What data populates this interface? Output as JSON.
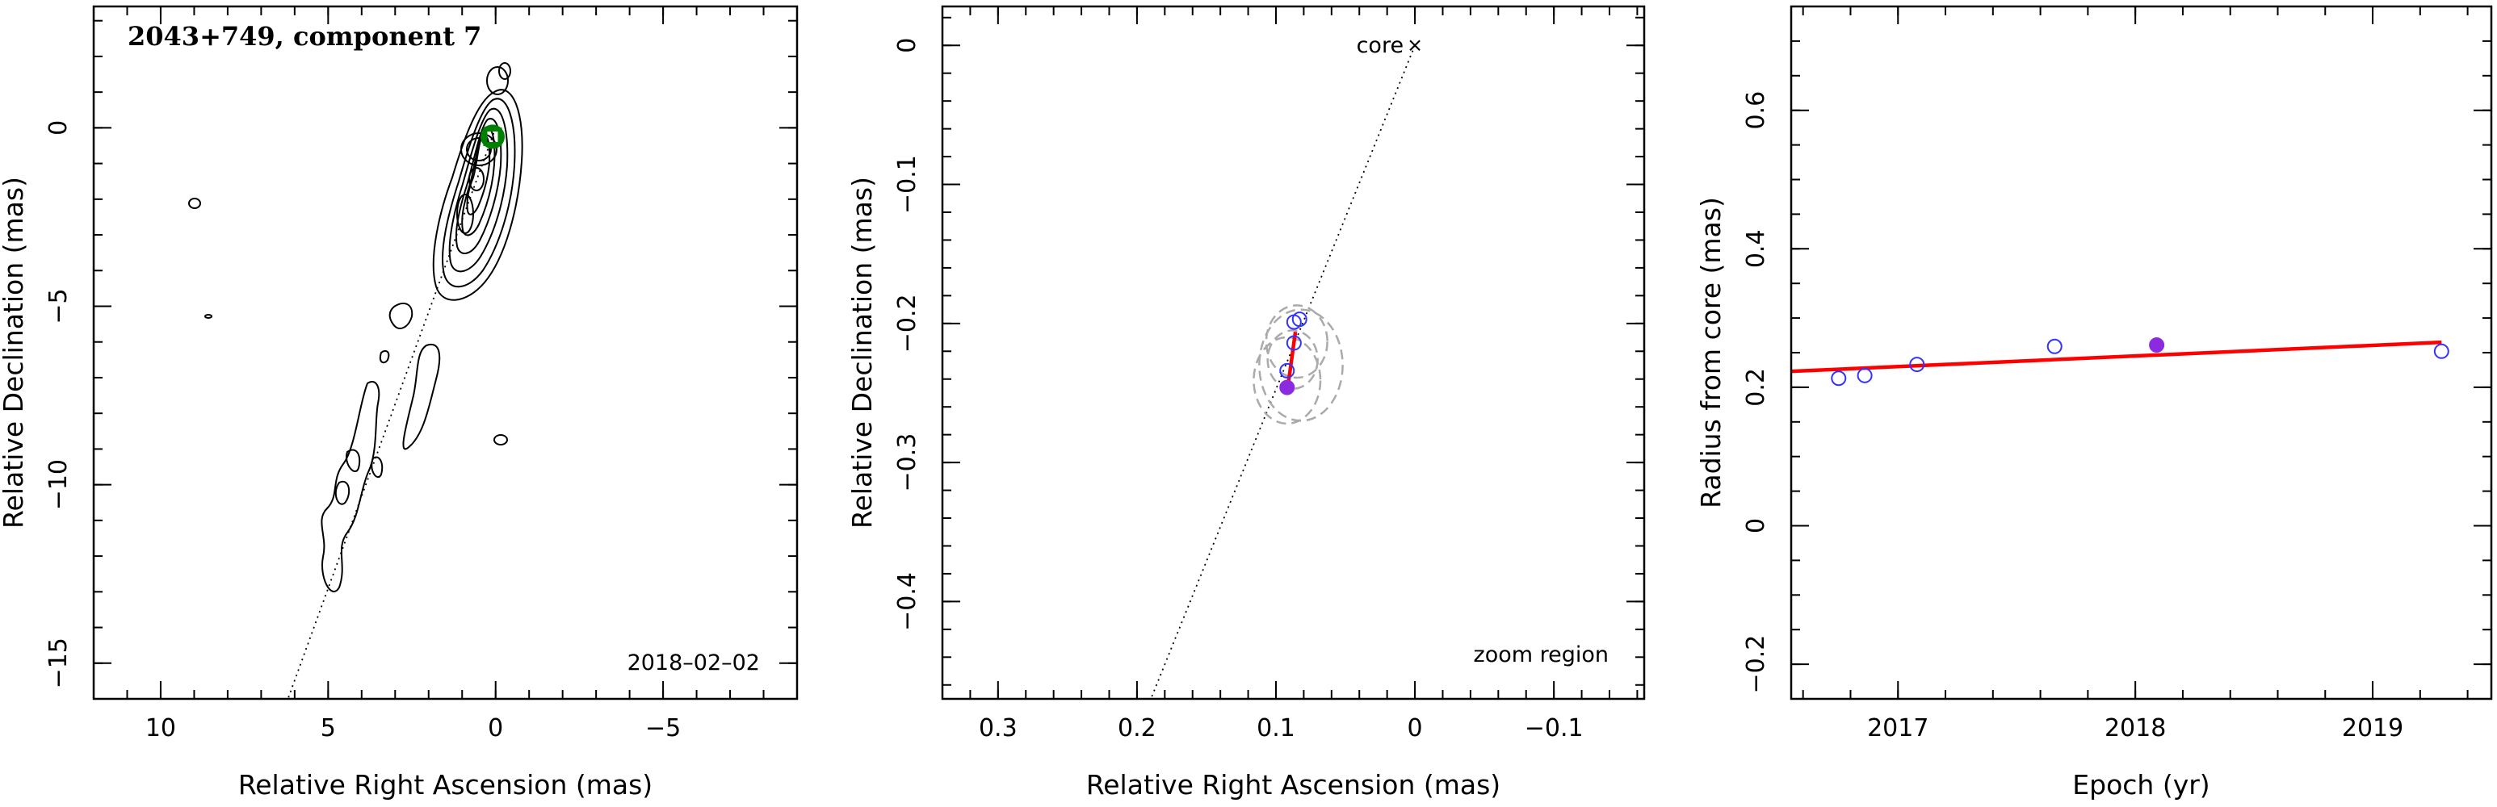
{
  "chart_data": [
    {
      "type": "contour",
      "title": "2043+749, component 7",
      "xlabel": "Relative Right Ascension (mas)",
      "ylabel": "Relative Declination (mas)",
      "xlim": [
        12,
        -9
      ],
      "ylim": [
        -16,
        3.4
      ],
      "xticks": [
        10,
        5,
        0,
        -5
      ],
      "xtick_labels": [
        "10",
        "5",
        "0",
        "−5"
      ],
      "yticks": [
        0,
        -5,
        -10,
        -15
      ],
      "ytick_labels": [
        "0",
        "−5",
        "−10",
        "−15"
      ],
      "epoch_label": "2018–02–02",
      "component_position": {
        "x": 0.09,
        "y": -0.25
      },
      "jet_axis_line": {
        "x1": 0,
        "y1": 0,
        "x2": 6.2,
        "y2": -16
      },
      "component_color": "#008000"
    },
    {
      "type": "scatter",
      "xlabel": "Relative Right Ascension (mas)",
      "ylabel": "Relative Declination (mas)",
      "xlim": [
        0.34,
        -0.165
      ],
      "ylim": [
        -0.47,
        0.028
      ],
      "xticks": [
        0.3,
        0.2,
        0.1,
        0,
        -0.1
      ],
      "xtick_labels": [
        "0.3",
        "0.2",
        "0.1",
        "0",
        "−0.1"
      ],
      "yticks": [
        0,
        -0.1,
        -0.2,
        -0.3,
        -0.4
      ],
      "ytick_labels": [
        "0",
        "−0.1",
        "−0.2",
        "−0.3",
        "−0.4"
      ],
      "core_label": "core",
      "annotation": "zoom region",
      "points_open": [
        {
          "x": 0.092,
          "y": -0.234
        },
        {
          "x": 0.087,
          "y": -0.199
        },
        {
          "x": 0.083,
          "y": -0.197
        },
        {
          "x": 0.087,
          "y": -0.214
        }
      ],
      "point_filled": {
        "x": 0.092,
        "y": -0.246
      },
      "fit_line": {
        "x1": 0.0915,
        "y1": -0.246,
        "x2": 0.086,
        "y2": -0.206
      },
      "ellipses": [
        {
          "x": 0.085,
          "y": -0.213,
          "rx": 0.022,
          "ry": 0.026
        },
        {
          "x": 0.092,
          "y": -0.241,
          "rx": 0.024,
          "ry": 0.031
        },
        {
          "x": 0.082,
          "y": -0.23,
          "rx": 0.03,
          "ry": 0.04
        },
        {
          "x": 0.088,
          "y": -0.226,
          "rx": 0.018,
          "ry": 0.021
        }
      ],
      "jet_axis_line": {
        "x1": 0,
        "y1": 0,
        "x2": 0.19,
        "y2": -0.47
      },
      "colors": {
        "open": "#3333ff",
        "filled": "#8a2be2",
        "fit": "#ff0000",
        "ellipse": "#aaaaaa"
      }
    },
    {
      "type": "scatter",
      "xlabel": "Epoch (yr)",
      "ylabel": "Radius from core (mas)",
      "xlim": [
        2016.55,
        2019.5
      ],
      "ylim": [
        -0.25,
        0.75
      ],
      "xticks": [
        2017,
        2018,
        2019
      ],
      "xtick_labels": [
        "2017",
        "2018",
        "2019"
      ],
      "yticks": [
        -0.2,
        0,
        0.2,
        0.4,
        0.6
      ],
      "ytick_labels": [
        "−0.2",
        "0",
        "0.2",
        "0.4",
        "0.6"
      ],
      "points_open": [
        {
          "x": 2016.75,
          "y": 0.213
        },
        {
          "x": 2016.86,
          "y": 0.217
        },
        {
          "x": 2017.08,
          "y": 0.233
        },
        {
          "x": 2017.66,
          "y": 0.259
        },
        {
          "x": 2019.29,
          "y": 0.252
        }
      ],
      "point_filled": {
        "x": 2018.09,
        "y": 0.261
      },
      "fit_line": {
        "x1": 2016.55,
        "y1": 0.223,
        "x2": 2019.29,
        "y2": 0.265
      },
      "colors": {
        "open": "#3333ff",
        "filled": "#8a2be2",
        "fit": "#ff0000"
      }
    }
  ]
}
